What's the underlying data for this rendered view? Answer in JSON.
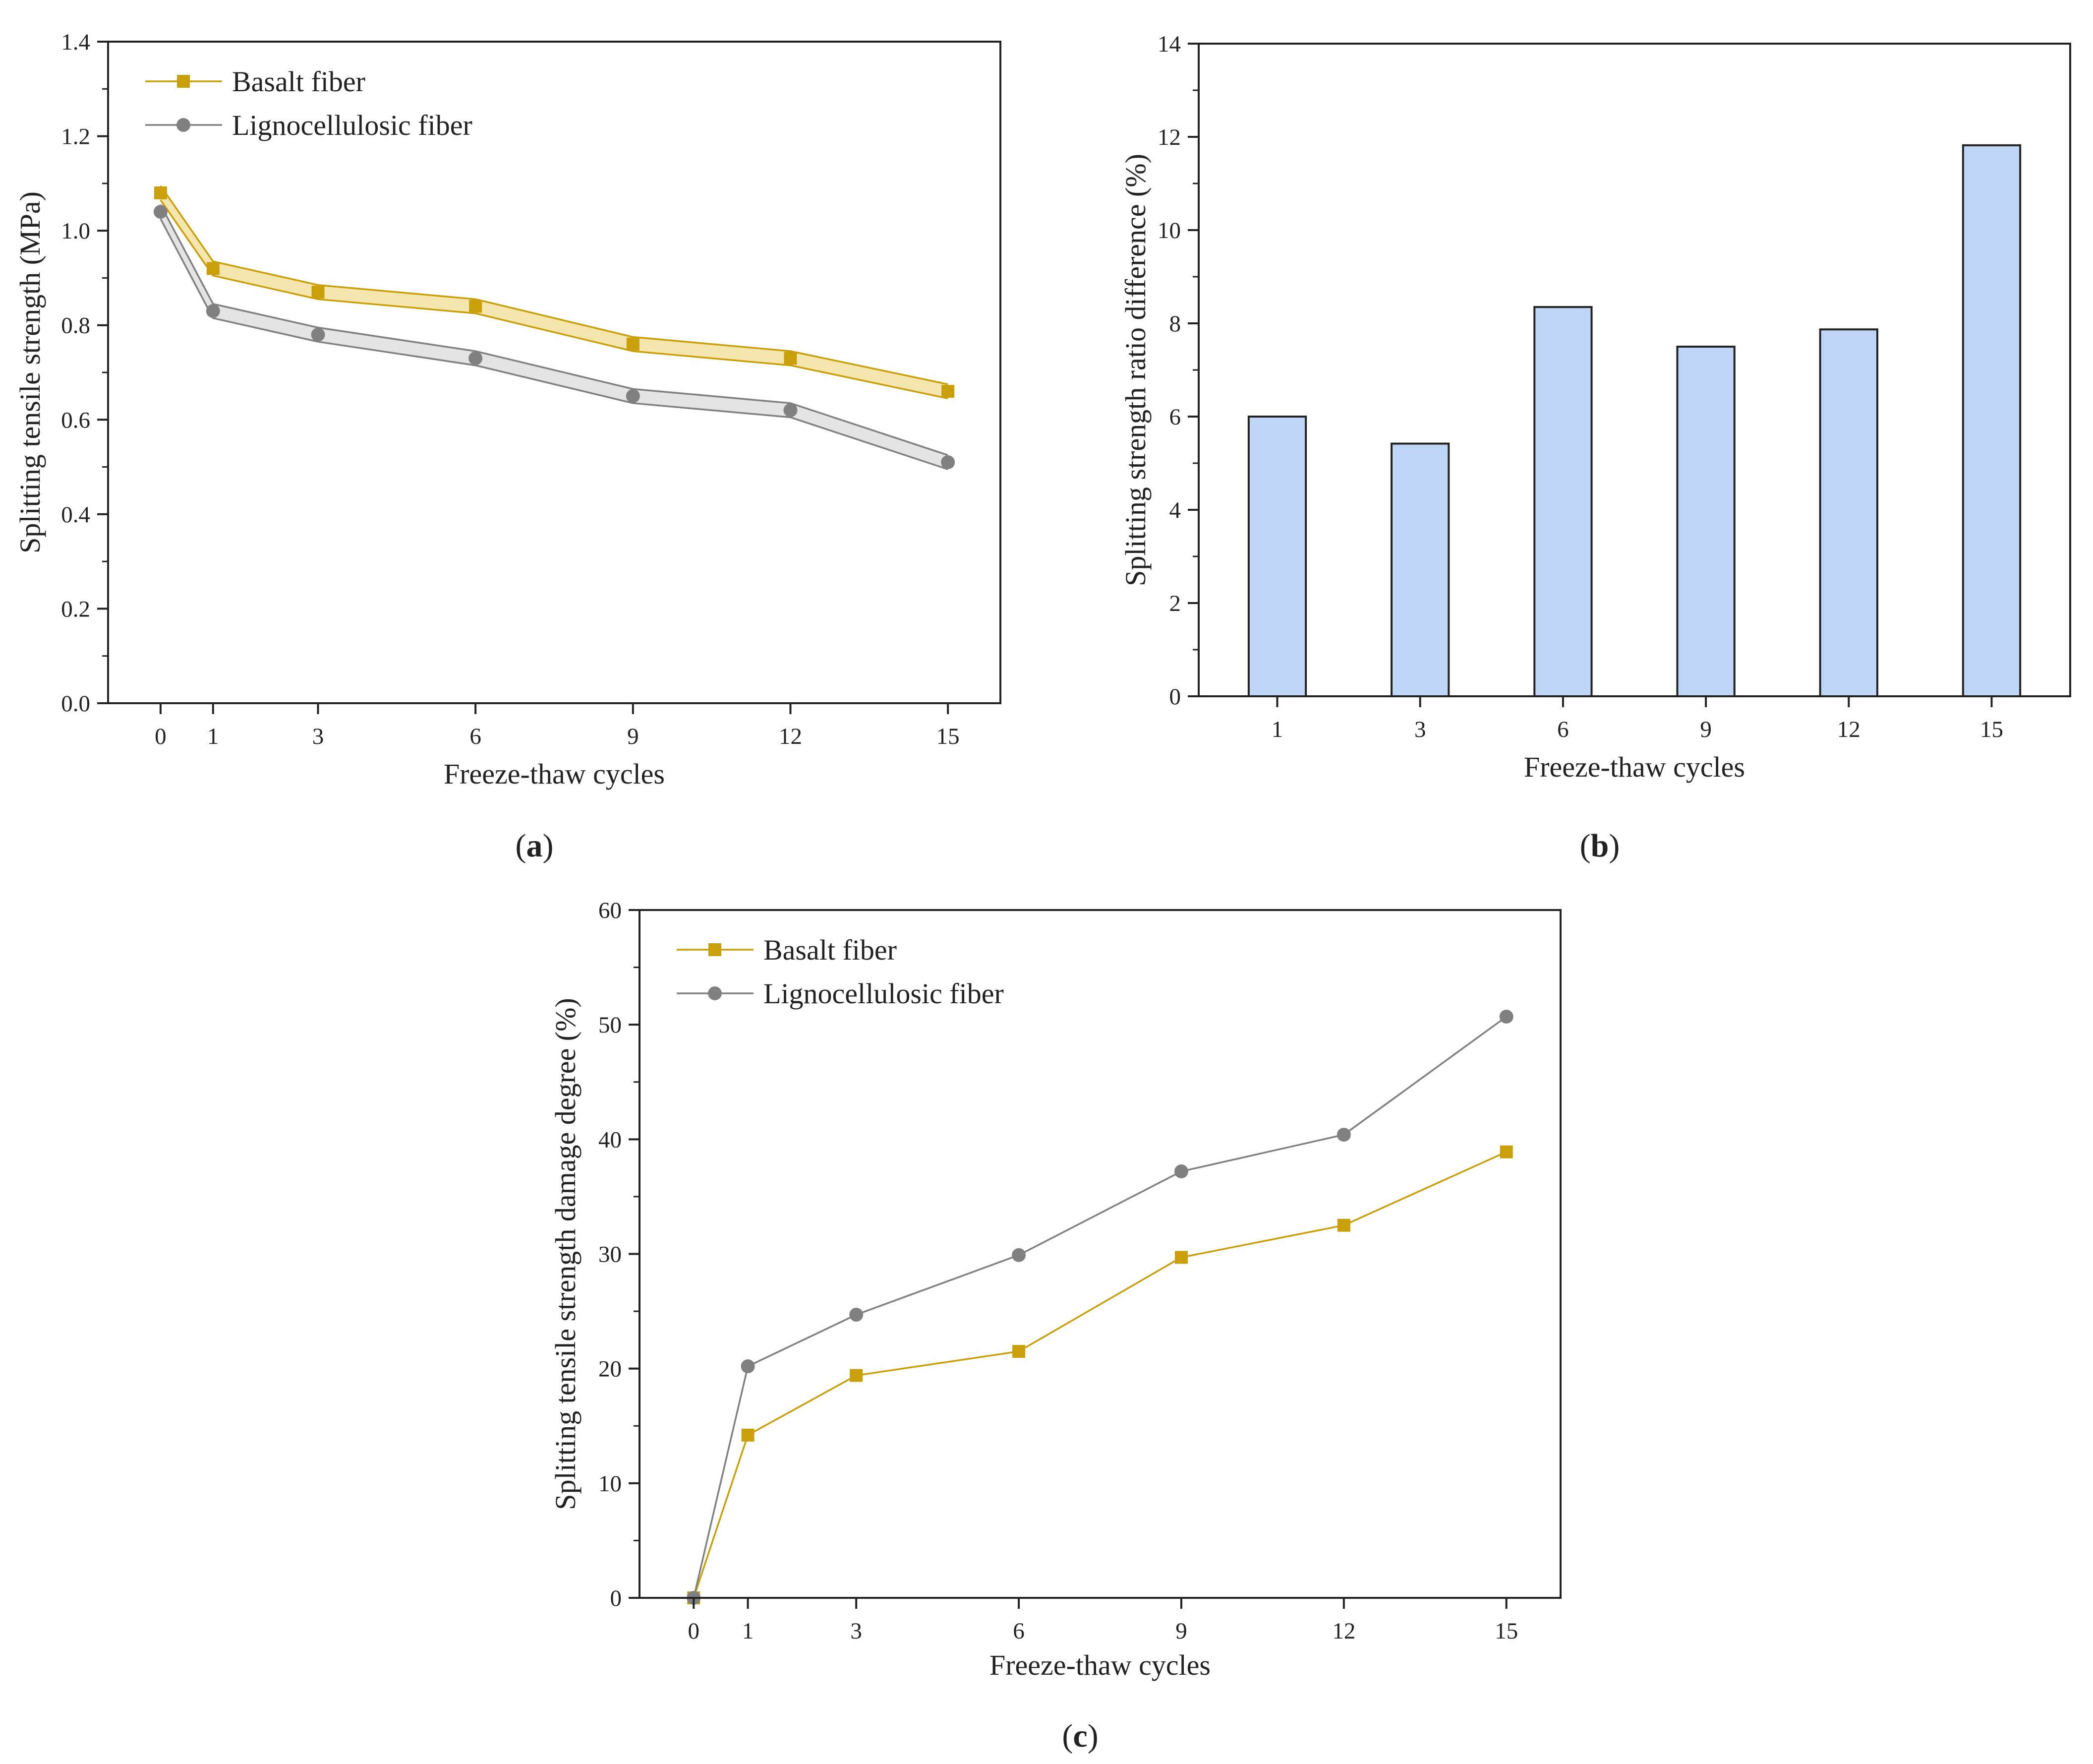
{
  "colors": {
    "basalt": "#C9A00A",
    "basalt_band": "#F5E6B0",
    "ligno": "#808080",
    "ligno_band": "#E4E4E4",
    "bar_fill": "#BFD5F5",
    "axis": "#222222"
  },
  "chart_data": [
    {
      "id": "a",
      "type": "line",
      "panel_label": "(a)",
      "panel_letter": "a",
      "xlabel": "Freeze-thaw cycles",
      "ylabel": "Splitting tensile strength (MPa)",
      "x": [
        0,
        1,
        3,
        6,
        9,
        12,
        15
      ],
      "xlim": [
        -1,
        16
      ],
      "ylim": [
        0,
        1.4
      ],
      "yticks": [
        "0.0",
        "0.2",
        "0.4",
        "0.6",
        "0.8",
        "1.0",
        "1.2",
        "1.4"
      ],
      "ytick_values": [
        0,
        0.2,
        0.4,
        0.6,
        0.8,
        1.0,
        1.2,
        1.4
      ],
      "xticks": [
        "0",
        "1",
        "3",
        "6",
        "9",
        "12",
        "15"
      ],
      "legend_position": "top-left",
      "series": [
        {
          "name": "Basalt fiber",
          "marker": "square",
          "values": [
            1.08,
            0.92,
            0.87,
            0.84,
            0.76,
            0.73,
            0.66
          ],
          "band": 0.015
        },
        {
          "name": "Lignocellulosic fiber",
          "marker": "circle",
          "values": [
            1.04,
            0.83,
            0.78,
            0.73,
            0.65,
            0.62,
            0.51
          ],
          "band": 0.015
        }
      ]
    },
    {
      "id": "b",
      "type": "bar",
      "panel_label": "(b)",
      "panel_letter": "b",
      "xlabel": "Freeze-thaw cycles",
      "ylabel": "Splitting strength ratio difference (%)",
      "categories": [
        "1",
        "3",
        "6",
        "9",
        "12",
        "15"
      ],
      "values": [
        6.0,
        5.42,
        8.35,
        7.5,
        7.87,
        11.82
      ],
      "ylim": [
        0,
        14
      ],
      "yticks": [
        "0",
        "2",
        "4",
        "6",
        "8",
        "10",
        "12",
        "14"
      ],
      "ytick_values": [
        0,
        2,
        4,
        6,
        8,
        10,
        12,
        14
      ]
    },
    {
      "id": "c",
      "type": "line",
      "panel_label": "(c)",
      "panel_letter": "c",
      "xlabel": "Freeze-thaw cycles",
      "ylabel": "Splitting tensile strength damage degree (%)",
      "x": [
        0,
        1,
        3,
        6,
        9,
        12,
        15
      ],
      "xlim": [
        -1,
        16
      ],
      "ylim": [
        0,
        60
      ],
      "yticks": [
        "0",
        "10",
        "20",
        "30",
        "40",
        "50",
        "60"
      ],
      "ytick_values": [
        0,
        10,
        20,
        30,
        40,
        50,
        60
      ],
      "xticks": [
        "0",
        "1",
        "3",
        "6",
        "9",
        "12",
        "15"
      ],
      "legend_position": "top-left",
      "series": [
        {
          "name": "Basalt fiber",
          "marker": "square",
          "values": [
            0,
            14.2,
            19.4,
            21.5,
            29.7,
            32.5,
            38.9
          ]
        },
        {
          "name": "Lignocellulosic fiber",
          "marker": "circle",
          "values": [
            0,
            20.2,
            24.7,
            29.9,
            37.2,
            40.4,
            50.7
          ]
        }
      ]
    }
  ]
}
